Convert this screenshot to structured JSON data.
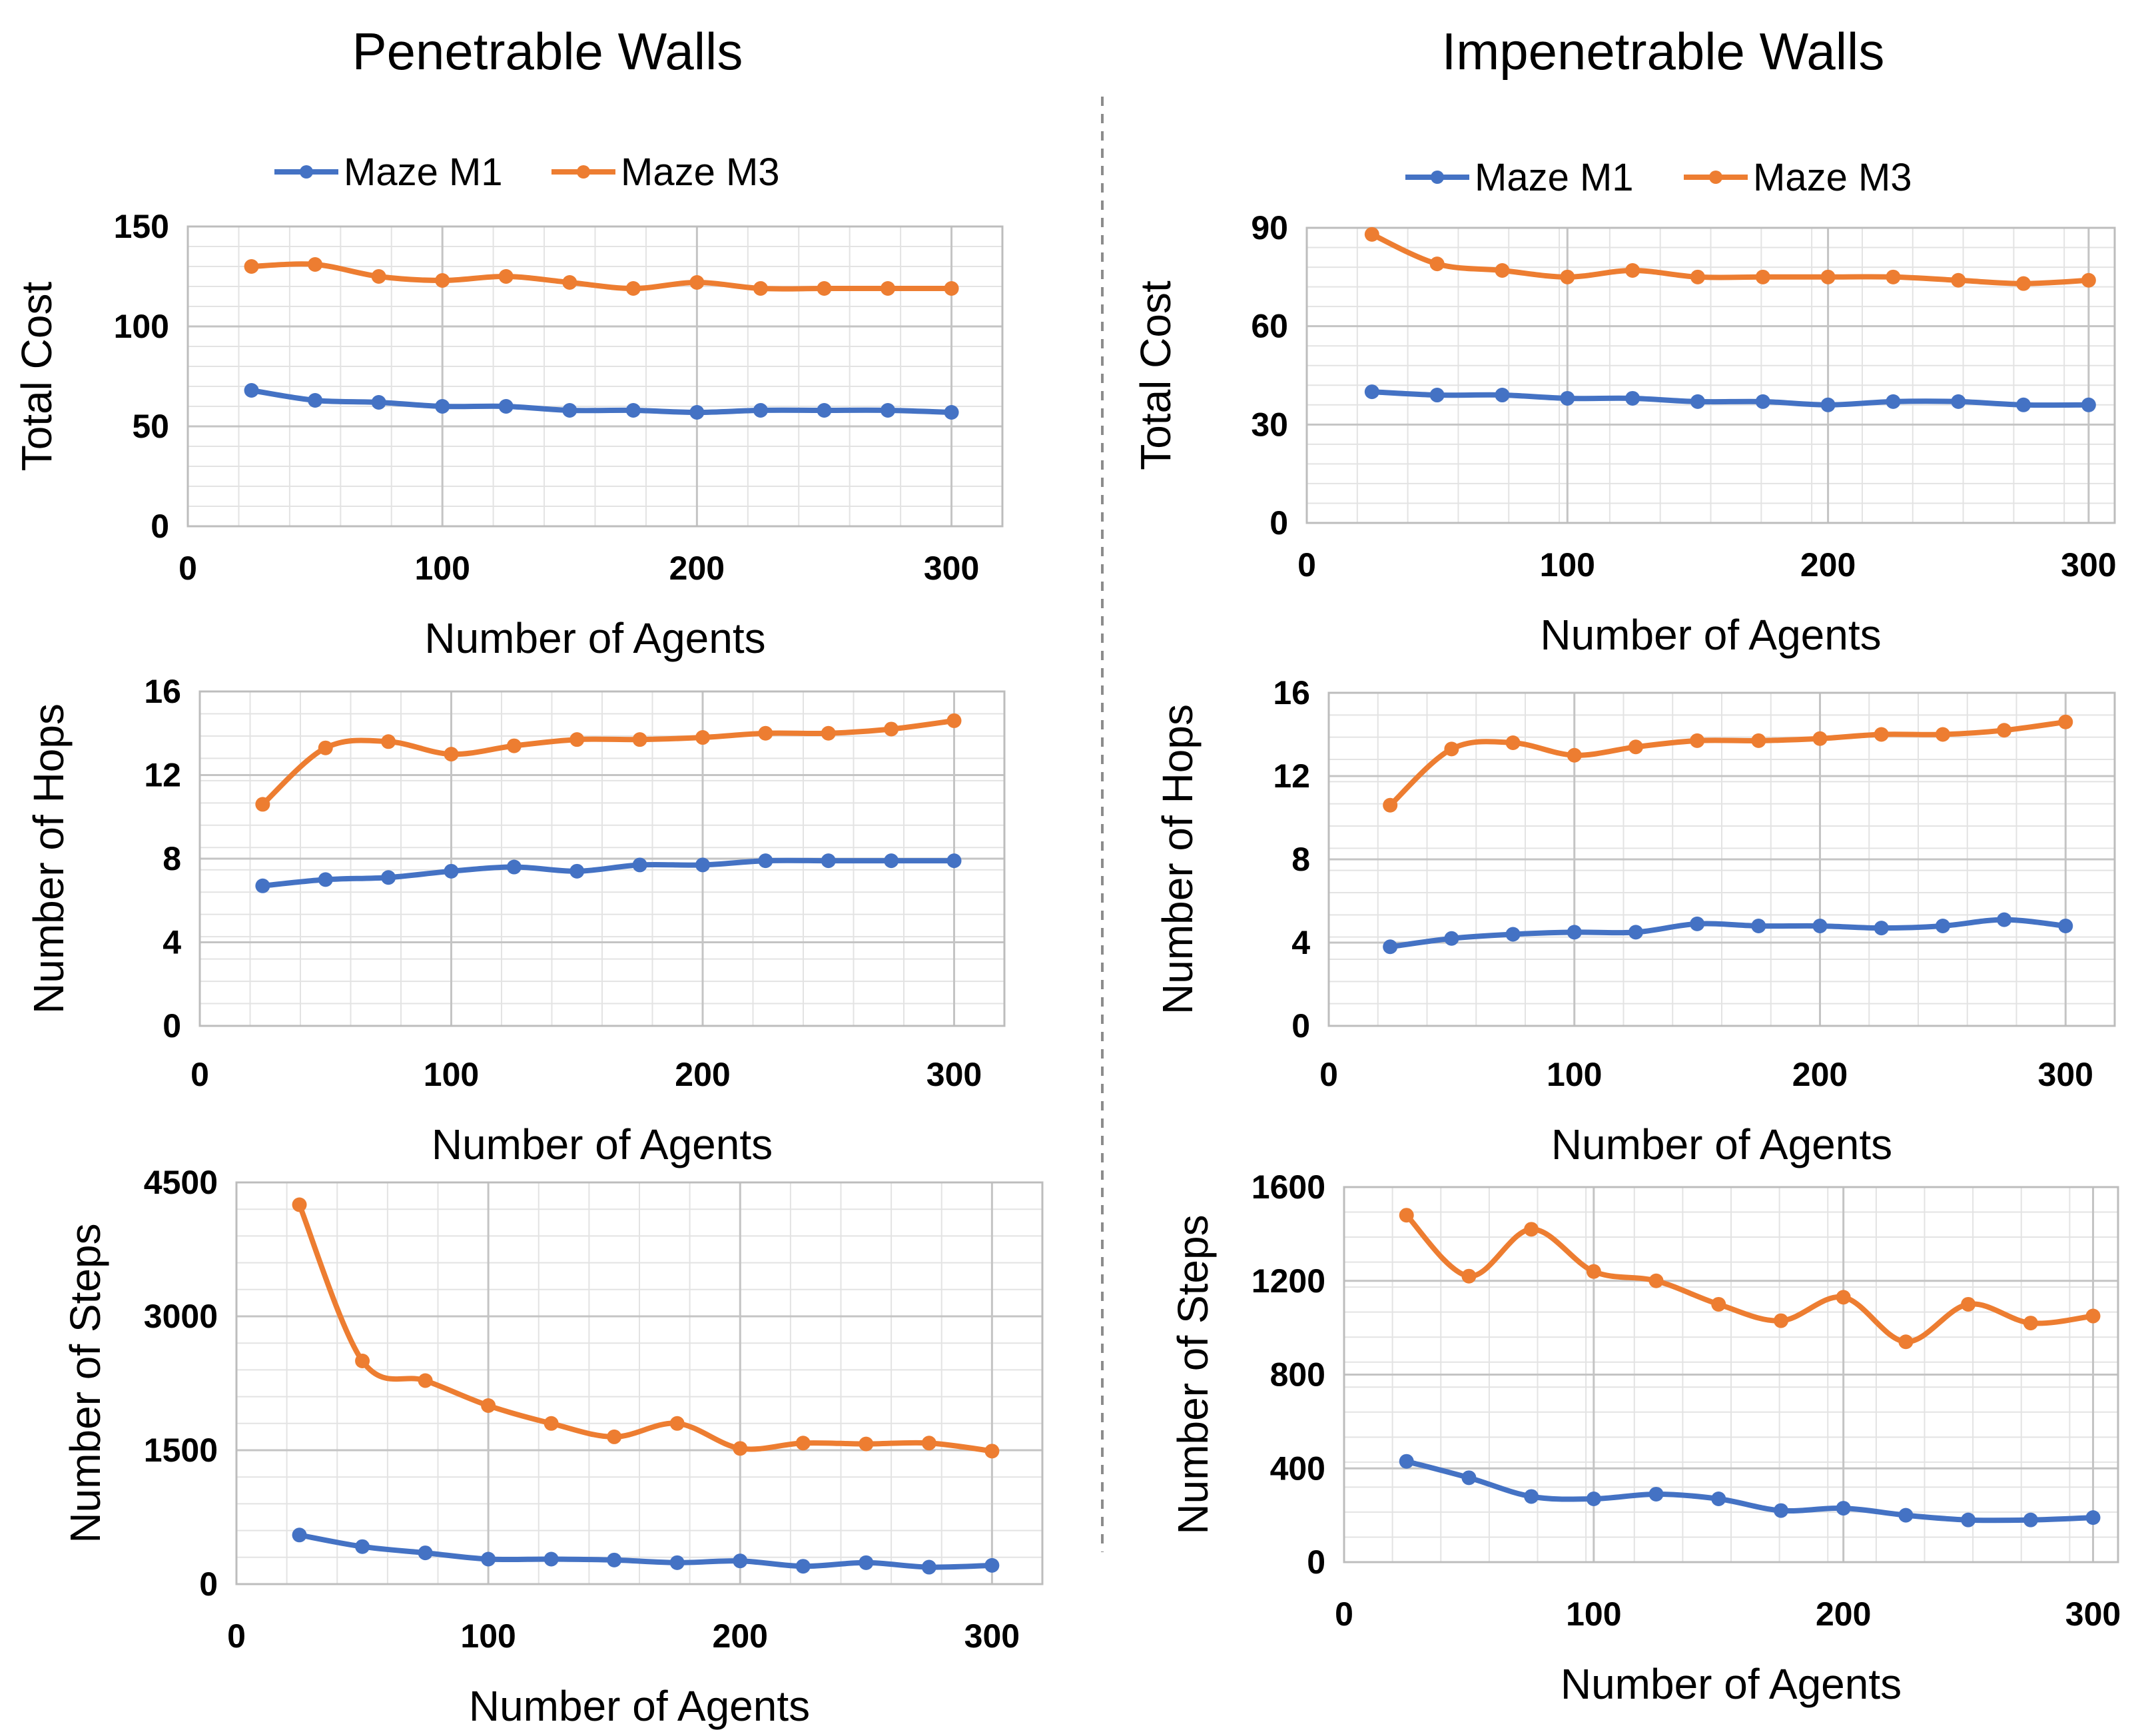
{
  "legend": [
    {
      "name": "Maze M1",
      "color": "#4472C4"
    },
    {
      "name": "Maze M3",
      "color": "#ED7D31"
    }
  ],
  "columns": [
    {
      "title": "Penetrable Walls"
    },
    {
      "title": "Impenetrable Walls"
    }
  ],
  "chart_data": [
    {
      "type": "line",
      "column": "Penetrable Walls",
      "xlabel": "Number of Agents",
      "ylabel": "Total Cost",
      "xlim": [
        0,
        320
      ],
      "ylim": [
        0,
        150
      ],
      "xticks": [
        0,
        100,
        200,
        300
      ],
      "yticks": [
        0,
        50,
        100,
        150
      ],
      "x": [
        25,
        50,
        75,
        100,
        125,
        150,
        175,
        200,
        225,
        250,
        275,
        300
      ],
      "series": [
        {
          "name": "Maze M1",
          "values": [
            68,
            63,
            62,
            60,
            60,
            58,
            58,
            57,
            58,
            58,
            58,
            57
          ]
        },
        {
          "name": "Maze M3",
          "values": [
            130,
            131,
            125,
            123,
            125,
            122,
            119,
            122,
            119,
            119,
            119,
            119
          ]
        }
      ]
    },
    {
      "type": "line",
      "column": "Impenetrable Walls",
      "xlabel": "Number of Agents",
      "ylabel": "Total Cost",
      "xlim": [
        0,
        310
      ],
      "ylim": [
        0,
        90
      ],
      "xticks": [
        0,
        100,
        200,
        300
      ],
      "yticks": [
        0,
        30,
        60,
        90
      ],
      "x": [
        25,
        50,
        75,
        100,
        125,
        150,
        175,
        200,
        225,
        250,
        275,
        300
      ],
      "series": [
        {
          "name": "Maze M1",
          "values": [
            40,
            39,
            39,
            38,
            38,
            37,
            37,
            36,
            37,
            37,
            36,
            36
          ]
        },
        {
          "name": "Maze M3",
          "values": [
            88,
            79,
            77,
            75,
            77,
            75,
            75,
            75,
            75,
            74,
            73,
            74
          ]
        }
      ]
    },
    {
      "type": "line",
      "column": "Penetrable Walls",
      "xlabel": "Number of Agents",
      "ylabel": "Number of Hops",
      "xlim": [
        0,
        320
      ],
      "ylim": [
        0,
        16
      ],
      "xticks": [
        0,
        100,
        200,
        300
      ],
      "yticks": [
        0,
        4,
        8,
        12,
        16
      ],
      "x": [
        25,
        50,
        75,
        100,
        125,
        150,
        175,
        200,
        225,
        250,
        275,
        300
      ],
      "series": [
        {
          "name": "Maze M1",
          "values": [
            6.7,
            7.0,
            7.1,
            7.4,
            7.6,
            7.4,
            7.7,
            7.7,
            7.9,
            7.9,
            7.9,
            7.9
          ]
        },
        {
          "name": "Maze M3",
          "values": [
            10.6,
            13.3,
            13.6,
            13.0,
            13.4,
            13.7,
            13.7,
            13.8,
            14.0,
            14.0,
            14.2,
            14.6
          ]
        }
      ]
    },
    {
      "type": "line",
      "column": "Impenetrable Walls",
      "xlabel": "Number of Agents",
      "ylabel": "Number of Hops",
      "xlim": [
        0,
        320
      ],
      "ylim": [
        0,
        16
      ],
      "xticks": [
        0,
        100,
        200,
        300
      ],
      "yticks": [
        0,
        4,
        8,
        12,
        16
      ],
      "x": [
        25,
        50,
        75,
        100,
        125,
        150,
        175,
        200,
        225,
        250,
        275,
        300
      ],
      "series": [
        {
          "name": "Maze M1",
          "values": [
            3.8,
            4.2,
            4.4,
            4.5,
            4.5,
            4.9,
            4.8,
            4.8,
            4.7,
            4.8,
            5.1,
            4.8
          ]
        },
        {
          "name": "Maze M3",
          "values": [
            10.6,
            13.3,
            13.6,
            13.0,
            13.4,
            13.7,
            13.7,
            13.8,
            14.0,
            14.0,
            14.2,
            14.6
          ]
        }
      ]
    },
    {
      "type": "line",
      "column": "Penetrable Walls",
      "xlabel": "Number of Agents",
      "ylabel": "Number of Steps",
      "xlim": [
        0,
        320
      ],
      "ylim": [
        0,
        4500
      ],
      "xticks": [
        0,
        100,
        200,
        300
      ],
      "yticks": [
        0,
        1500,
        3000,
        4500
      ],
      "x": [
        25,
        50,
        75,
        100,
        125,
        150,
        175,
        200,
        225,
        250,
        275,
        300
      ],
      "series": [
        {
          "name": "Maze M1",
          "values": [
            550,
            420,
            350,
            280,
            280,
            270,
            240,
            260,
            200,
            240,
            190,
            210
          ]
        },
        {
          "name": "Maze M3",
          "values": [
            4250,
            2500,
            2280,
            2000,
            1800,
            1650,
            1800,
            1520,
            1580,
            1570,
            1580,
            1490
          ]
        }
      ]
    },
    {
      "type": "line",
      "column": "Impenetrable Walls",
      "xlabel": "Number of Agents",
      "ylabel": "Number of Steps",
      "xlim": [
        0,
        310
      ],
      "ylim": [
        0,
        1600
      ],
      "xticks": [
        0,
        100,
        200,
        300
      ],
      "yticks": [
        0,
        400,
        800,
        1200,
        1600
      ],
      "x": [
        25,
        50,
        75,
        100,
        125,
        150,
        175,
        200,
        225,
        250,
        275,
        300
      ],
      "series": [
        {
          "name": "Maze M1",
          "values": [
            430,
            360,
            280,
            270,
            290,
            270,
            220,
            230,
            200,
            180,
            180,
            190
          ]
        },
        {
          "name": "Maze M3",
          "values": [
            1480,
            1220,
            1420,
            1240,
            1200,
            1100,
            1030,
            1130,
            940,
            1100,
            1020,
            1050
          ]
        }
      ]
    }
  ]
}
